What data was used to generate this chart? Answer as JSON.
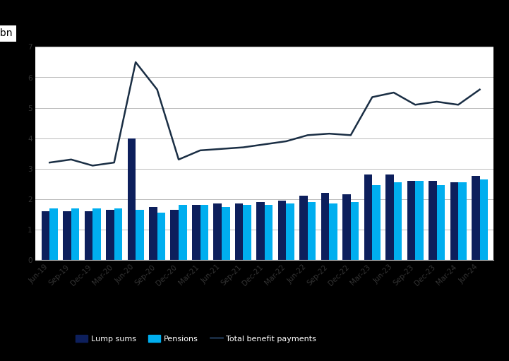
{
  "ylabel": "$bn",
  "background_color": "#000000",
  "plot_bg_color": "#ffffff",
  "bar_color_lump": "#0d1f5c",
  "bar_color_pension": "#00aeef",
  "line_color": "#1a2e44",
  "categories": [
    "Jun-19",
    "Sep-19",
    "Dec-19",
    "Mar-20",
    "Jun-20",
    "Sep-20",
    "Dec-20",
    "Mar-21",
    "Jun-21",
    "Sep-21",
    "Dec-21",
    "Mar-22",
    "Jun-22",
    "Sep-22",
    "Dec-22",
    "Mar-23",
    "Jun-23",
    "Sep-23",
    "Dec-23",
    "Mar-24",
    "Jun-24"
  ],
  "lump_sums": [
    1.6,
    1.6,
    1.6,
    1.65,
    4.0,
    1.75,
    1.65,
    1.8,
    1.85,
    1.85,
    1.9,
    1.95,
    2.1,
    2.2,
    2.15,
    2.8,
    2.8,
    2.6,
    2.6,
    2.55,
    2.75
  ],
  "pensions": [
    1.7,
    1.7,
    1.7,
    1.7,
    1.65,
    1.55,
    1.8,
    1.8,
    1.75,
    1.8,
    1.8,
    1.85,
    1.9,
    1.85,
    1.9,
    2.45,
    2.55,
    2.6,
    2.45,
    2.55,
    2.65
  ],
  "total_line": [
    3.2,
    3.3,
    3.1,
    3.2,
    6.5,
    5.6,
    3.3,
    3.6,
    3.65,
    3.7,
    3.8,
    3.9,
    4.1,
    4.15,
    4.1,
    5.35,
    5.5,
    5.1,
    5.2,
    5.1,
    5.6
  ],
  "ylim": [
    0,
    7
  ],
  "yticks": [
    0,
    1,
    2,
    3,
    4,
    5,
    6,
    7
  ],
  "legend_labels": [
    "Lump sums",
    "Pensions",
    "Total benefit payments"
  ],
  "legend_fontsize": 8,
  "tick_fontsize": 7.5,
  "bar_width": 0.38,
  "line_width": 1.8
}
